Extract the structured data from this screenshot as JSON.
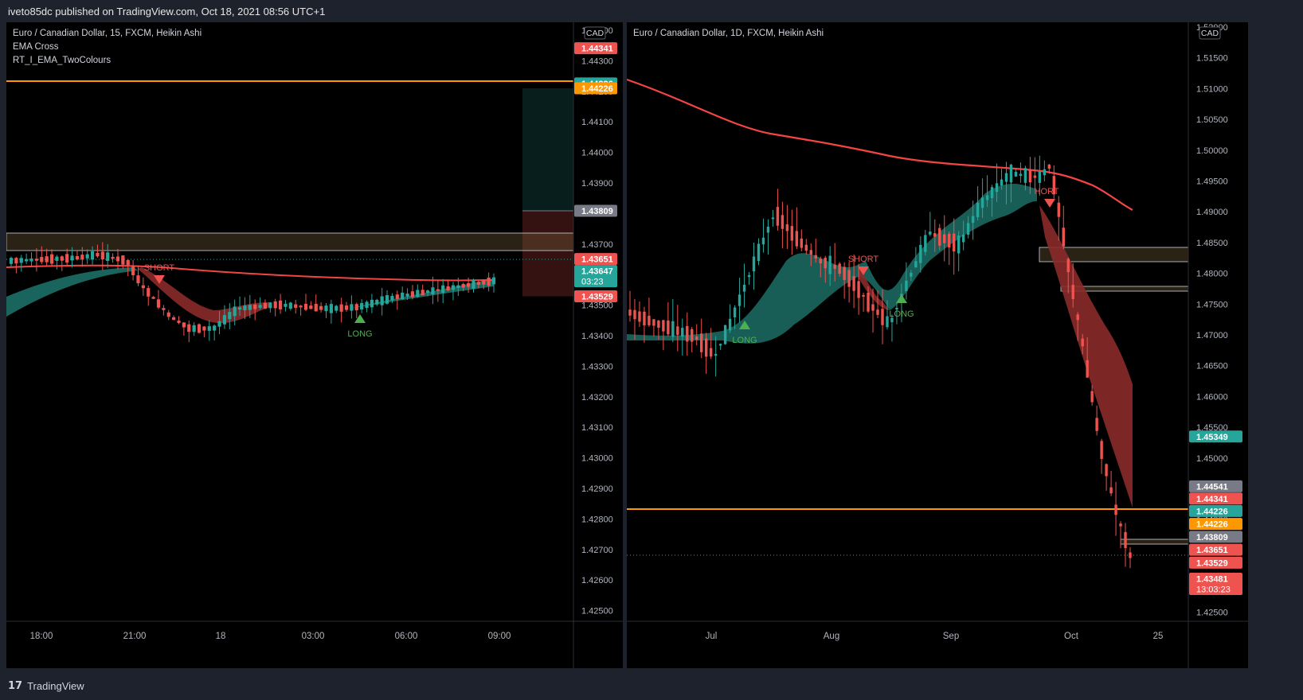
{
  "header": {
    "publish_text": "iveto85dc published on TradingView.com, Oct 18, 2021 08:56 UTC+1"
  },
  "footer": {
    "brand": "TradingView",
    "logo_icon": "tradingview-logo-icon"
  },
  "colors": {
    "up": "#26a69a",
    "down": "#ef5350",
    "orange": "#ff9800",
    "ema": "#f44545",
    "bg": "#000000"
  },
  "left_chart": {
    "legend": [
      "Euro / Canadian Dollar, 15, FXCM, Heikin Ashi",
      "EMA Cross",
      "RT_I_EMA_TwoColours"
    ],
    "currency": "CAD",
    "y_ticks": [
      "1.44400",
      "1.44300",
      "1.44200",
      "1.44100",
      "1.44000",
      "1.43900",
      "1.43800",
      "1.43700",
      "1.43600",
      "1.43500",
      "1.43400",
      "1.43300",
      "1.43200",
      "1.43100",
      "1.43000",
      "1.42900",
      "1.42800",
      "1.42700",
      "1.42600",
      "1.42500"
    ],
    "x_ticks": [
      "18:00",
      "21:00",
      "18",
      "03:00",
      "06:00",
      "09:00"
    ],
    "price_labels": [
      {
        "text": "1.44341",
        "price": 1.44341,
        "color": "#ef5350"
      },
      {
        "text": "1.44226",
        "price": 1.44226,
        "color": "#26a69a"
      },
      {
        "text": "1.44226",
        "price": 1.4421,
        "color": "#ff9800"
      },
      {
        "text": "1.43809",
        "price": 1.43809,
        "color": "#787b86"
      },
      {
        "text": "1.43651",
        "price": 1.43651,
        "color": "#ef5350"
      },
      {
        "text": "1.43647",
        "sub": "03:23",
        "price": 1.43612,
        "color": "#26a69a"
      },
      {
        "text": "1.43529",
        "price": 1.43529,
        "color": "#ef5350"
      }
    ],
    "signals": [
      {
        "text": "SHORT",
        "type": "short"
      },
      {
        "text": "LONG",
        "type": "long"
      }
    ]
  },
  "right_chart": {
    "legend": [
      "Euro / Canadian Dollar, 1D, FXCM, Heikin Ashi"
    ],
    "currency": "CAD",
    "y_ticks": [
      "1.52000",
      "1.51500",
      "1.51000",
      "1.50500",
      "1.50000",
      "1.49500",
      "1.49000",
      "1.48500",
      "1.48000",
      "1.47500",
      "1.47000",
      "1.46500",
      "1.46000",
      "1.45500",
      "1.45000",
      "1.44500",
      "1.44000",
      "1.43500",
      "1.43000",
      "1.42500"
    ],
    "x_ticks": [
      "Jul",
      "Aug",
      "Sep",
      "Oct",
      "25"
    ],
    "price_labels": [
      {
        "text": "1.45349",
        "price": 1.45349,
        "color": "#26a69a"
      },
      {
        "text": "1.44541",
        "price": 1.44541,
        "color": "#787b86"
      },
      {
        "text": "1.44341",
        "price": 1.44341,
        "color": "#ef5350"
      },
      {
        "text": "1.44226",
        "price": 1.4414,
        "color": "#26a69a"
      },
      {
        "text": "1.44226",
        "price": 1.4393,
        "color": "#ff9800"
      },
      {
        "text": "1.43809",
        "price": 1.4372,
        "color": "#787b86"
      },
      {
        "text": "1.43651",
        "price": 1.4351,
        "color": "#ef5350"
      },
      {
        "text": "1.43529",
        "price": 1.433,
        "color": "#ef5350"
      },
      {
        "text": "1.43481",
        "sub": "13:03:23",
        "price": 1.4304,
        "color": "#ef5350"
      }
    ],
    "signals": [
      {
        "text": "SHORT",
        "type": "short"
      },
      {
        "text": "LONG",
        "type": "long"
      },
      {
        "text": "LONG",
        "type": "long"
      },
      {
        "text": "HORT",
        "type": "short"
      }
    ]
  }
}
